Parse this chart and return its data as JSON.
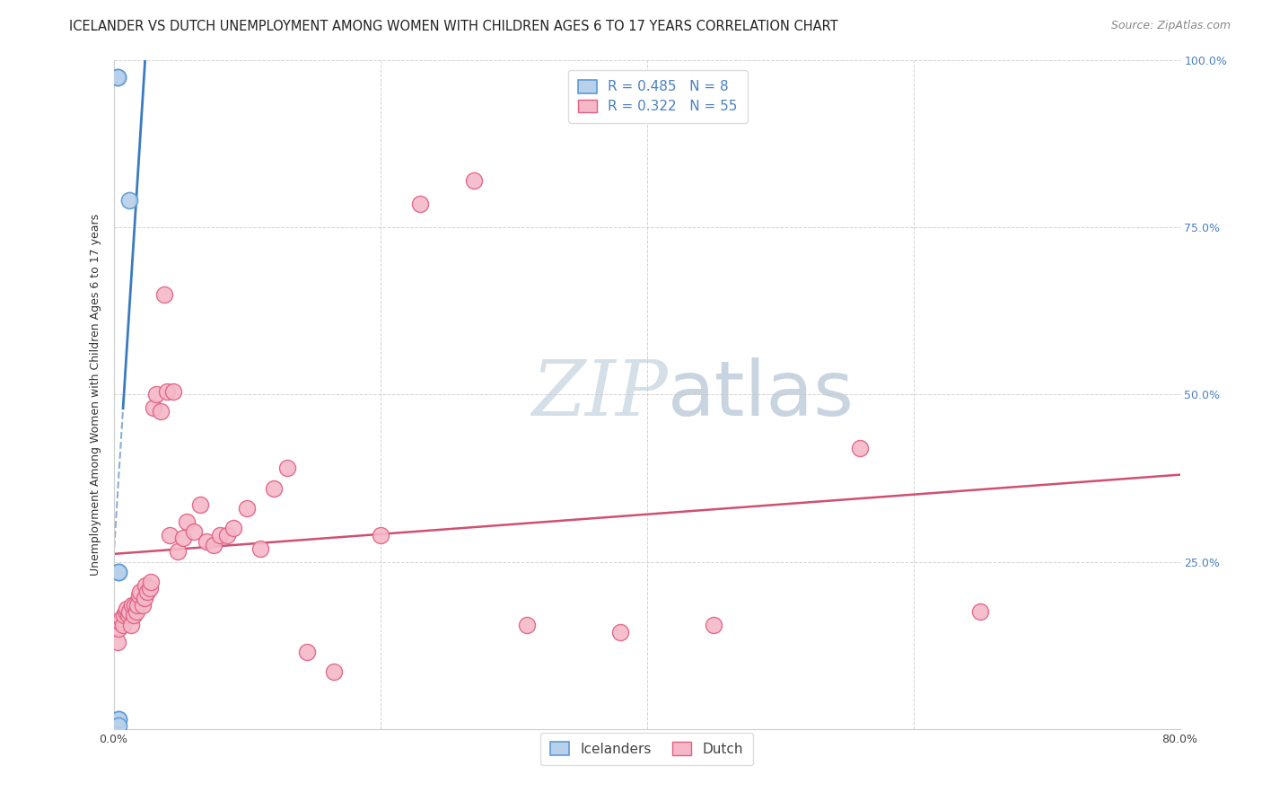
{
  "title": "ICELANDER VS DUTCH UNEMPLOYMENT AMONG WOMEN WITH CHILDREN AGES 6 TO 17 YEARS CORRELATION CHART",
  "source": "Source: ZipAtlas.com",
  "ylabel": "Unemployment Among Women with Children Ages 6 to 17 years",
  "xlim": [
    0.0,
    0.8
  ],
  "ylim": [
    0.0,
    1.0
  ],
  "x_ticks": [
    0.0,
    0.2,
    0.4,
    0.6,
    0.8
  ],
  "x_tick_labels": [
    "0.0%",
    "",
    "",
    "",
    "80.0%"
  ],
  "y_ticks": [
    0.0,
    0.25,
    0.5,
    0.75,
    1.0
  ],
  "y_tick_right_labels": [
    "",
    "25.0%",
    "50.0%",
    "75.0%",
    "100.0%"
  ],
  "legend_R": [
    "0.485",
    "0.322"
  ],
  "legend_N": [
    "8",
    "55"
  ],
  "legend_bottom": [
    "Icelanders",
    "Dutch"
  ],
  "icelander_color": "#b8d0ea",
  "dutch_color": "#f5b8c8",
  "icelander_edge_color": "#5b9bd5",
  "dutch_edge_color": "#e06080",
  "icelander_line_color": "#3a7bbf",
  "dutch_line_color": "#d05070",
  "watermark_zip": "ZIP",
  "watermark_atlas": "atlas",
  "watermark_color": "#cdd9e8",
  "watermark_atlas_color": "#c0cfe0",
  "background_color": "#ffffff",
  "icelander_x": [
    0.003,
    0.003,
    0.004,
    0.004,
    0.004,
    0.004,
    0.004,
    0.012
  ],
  "icelander_y": [
    0.975,
    0.975,
    0.235,
    0.235,
    0.015,
    0.015,
    0.005,
    0.79
  ],
  "dutch_x": [
    0.003,
    0.004,
    0.005,
    0.006,
    0.007,
    0.008,
    0.009,
    0.01,
    0.011,
    0.012,
    0.013,
    0.014,
    0.015,
    0.016,
    0.017,
    0.018,
    0.019,
    0.02,
    0.022,
    0.023,
    0.024,
    0.025,
    0.027,
    0.028,
    0.03,
    0.032,
    0.035,
    0.038,
    0.04,
    0.042,
    0.045,
    0.048,
    0.052,
    0.055,
    0.06,
    0.065,
    0.07,
    0.075,
    0.08,
    0.085,
    0.09,
    0.1,
    0.11,
    0.12,
    0.13,
    0.145,
    0.165,
    0.2,
    0.23,
    0.27,
    0.31,
    0.38,
    0.45,
    0.56,
    0.65
  ],
  "dutch_y": [
    0.13,
    0.15,
    0.16,
    0.165,
    0.155,
    0.17,
    0.175,
    0.18,
    0.17,
    0.175,
    0.155,
    0.185,
    0.17,
    0.185,
    0.175,
    0.185,
    0.2,
    0.205,
    0.185,
    0.195,
    0.215,
    0.205,
    0.21,
    0.22,
    0.48,
    0.5,
    0.475,
    0.65,
    0.505,
    0.29,
    0.505,
    0.265,
    0.285,
    0.31,
    0.295,
    0.335,
    0.28,
    0.275,
    0.29,
    0.29,
    0.3,
    0.33,
    0.27,
    0.36,
    0.39,
    0.115,
    0.085,
    0.29,
    0.785,
    0.82,
    0.155,
    0.145,
    0.155,
    0.42,
    0.175
  ],
  "title_fontsize": 10.5,
  "source_fontsize": 9,
  "axis_label_fontsize": 9,
  "tick_fontsize": 9,
  "legend_fontsize": 11
}
